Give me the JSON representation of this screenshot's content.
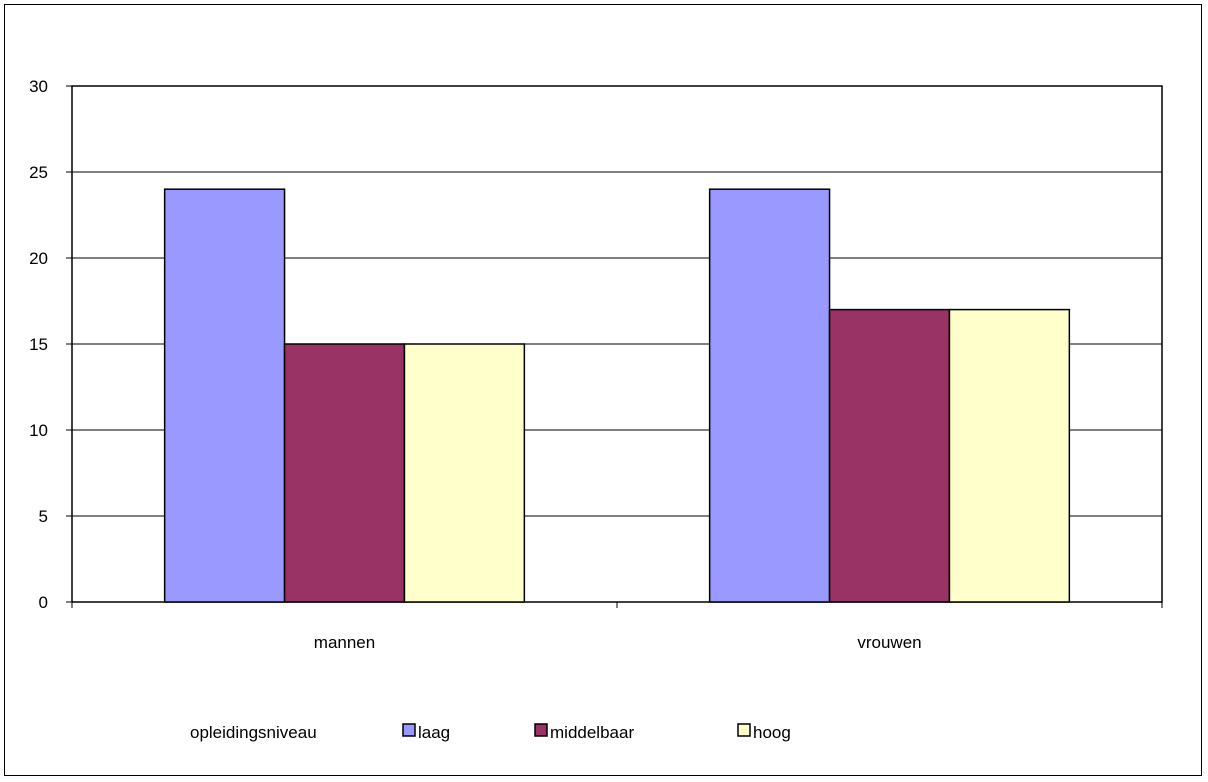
{
  "chart_data": {
    "type": "bar",
    "categories": [
      "mannen",
      "vrouwen"
    ],
    "series": [
      {
        "name": "laag",
        "values": [
          24,
          24
        ],
        "color": "#9999FF"
      },
      {
        "name": "middelbaar",
        "values": [
          15,
          17
        ],
        "color": "#993366"
      },
      {
        "name": "hoog",
        "values": [
          15,
          17
        ],
        "color": "#FFFFCC"
      }
    ],
    "ylim": [
      0,
      30
    ],
    "yticks": [
      "0",
      "5",
      "10",
      "15",
      "20",
      "25",
      "30"
    ],
    "legend": {
      "title": "opleidingsniveau",
      "placement": "bottom"
    },
    "grid": true
  }
}
